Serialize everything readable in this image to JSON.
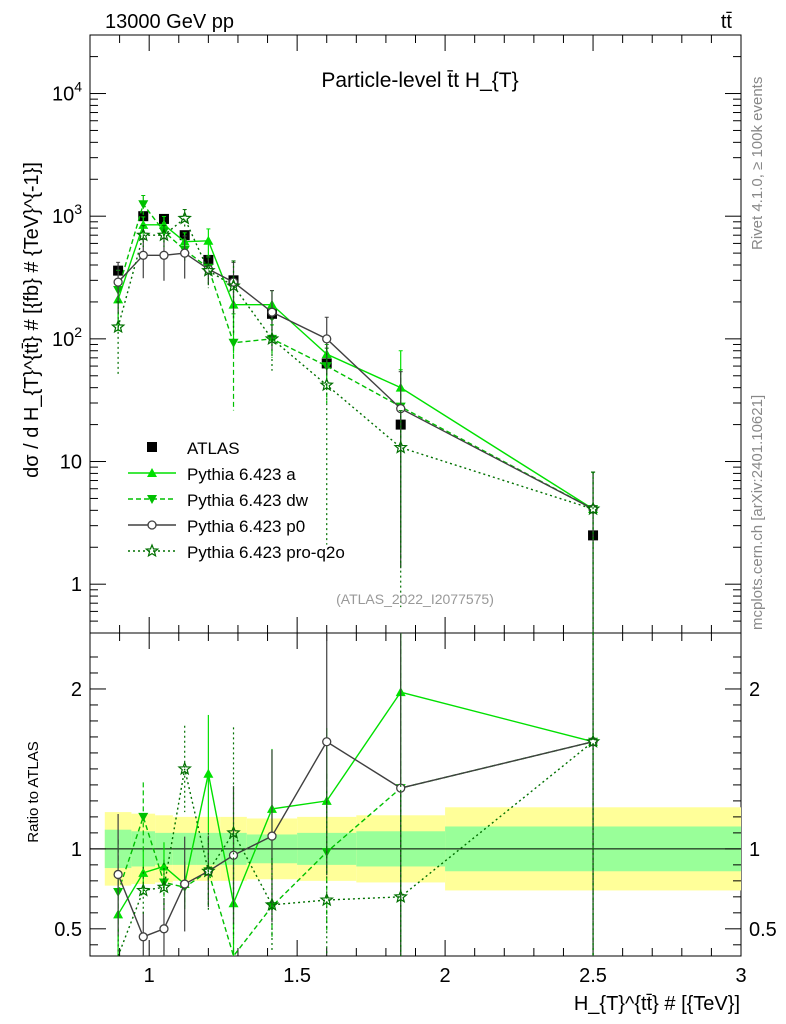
{
  "header": {
    "left": "13000 GeV pp",
    "right": "tt̄",
    "side_rivet": "Rivet 4.1.0, ≥ 100k events",
    "side_mcplots": "mcplots.cern.ch [arXiv:2401.10621]"
  },
  "chart_data": {
    "type": "line",
    "title": "Particle-level t̄t  H_{T}",
    "watermark": "(ATLAS_2022_I2077575)",
    "xlabel": "H_{T}^{tt̄} # [{TeV}]",
    "ylabel": "dσ / d H_{T}^{tt̄} # [{fb} # {TeV}^{-1}]",
    "ratio_ylabel": "Ratio to ATLAS",
    "xlim": [
      0.8,
      3.0
    ],
    "ylim": [
      0.4,
      30000
    ],
    "ratio_ylim": [
      0.33,
      2.35
    ],
    "x_ticks": [
      "1",
      "1.5",
      "2",
      "2.5",
      "3"
    ],
    "y_ticks": [
      "1",
      "10",
      "10^2",
      "10^3",
      "10^4"
    ],
    "ratio_ticks": [
      "0.5",
      "1",
      "2"
    ],
    "bins": [
      0.85,
      0.94,
      1.02,
      1.08,
      1.16,
      1.24,
      1.33,
      1.5,
      1.7,
      2.0,
      3.0
    ],
    "x": [
      0.895,
      0.98,
      1.05,
      1.12,
      1.2,
      1.285,
      1.415,
      1.6,
      1.85,
      2.5
    ],
    "series": [
      {
        "name": "ATLAS",
        "color": "#000000",
        "values": [
          360,
          1000,
          950,
          700,
          440,
          300,
          160,
          63,
          20,
          2.5
        ],
        "band_inner": [
          0.12,
          0.11,
          0.1,
          0.1,
          0.1,
          0.1,
          0.09,
          0.1,
          0.11,
          0.14
        ],
        "band_outer": [
          0.23,
          0.22,
          0.21,
          0.2,
          0.2,
          0.2,
          0.19,
          0.2,
          0.21,
          0.26
        ]
      },
      {
        "name": "Pythia 6.423 a",
        "color": "#00e000",
        "values": [
          210,
          850,
          850,
          620,
          630,
          190,
          190,
          75,
          40,
          4.1
        ],
        "errors": [
          0.45,
          0.16,
          0.17,
          0.18,
          0.25,
          0.6,
          0.3,
          0.35,
          1.0,
          1.0
        ],
        "ratio": [
          0.59,
          0.85,
          0.89,
          0.78,
          1.47,
          0.66,
          1.25,
          1.3,
          1.98,
          1.67
        ]
      },
      {
        "name": "Pythia 6.423 dw",
        "color": "#00c000",
        "values": [
          250,
          1250,
          750,
          530,
          380,
          93,
          100,
          60,
          28,
          4.1
        ],
        "errors": [
          0.45,
          0.18,
          0.18,
          0.18,
          0.25,
          0.72,
          0.3,
          0.5,
          1.0,
          1.0
        ],
        "ratio": [
          0.73,
          1.2,
          0.79,
          0.76,
          0.86,
          0.31,
          0.64,
          0.98,
          1.38,
          1.67
        ]
      },
      {
        "name": "Pythia 6.423 p0",
        "color": "#404040",
        "values": [
          290,
          480,
          480,
          500,
          370,
          290,
          165,
          100,
          27,
          4.1
        ],
        "errors": [
          0.45,
          0.35,
          0.38,
          0.38,
          0.26,
          0.45,
          0.5,
          0.5,
          1.0,
          1.0
        ],
        "ratio": [
          0.84,
          0.45,
          0.5,
          0.78,
          0.86,
          0.96,
          1.08,
          1.67,
          1.38,
          1.67
        ]
      },
      {
        "name": "Pythia 6.423 pro-q2o",
        "color": "#007000",
        "values": [
          125,
          700,
          700,
          960,
          360,
          270,
          100,
          42,
          13,
          4.1
        ],
        "errors": [
          0.6,
          0.2,
          0.2,
          0.18,
          0.28,
          0.6,
          0.45,
          1.0,
          1.0,
          1.0
        ],
        "ratio": [
          0.31,
          0.74,
          0.76,
          1.5,
          0.86,
          1.1,
          0.65,
          0.68,
          0.7,
          1.67
        ]
      }
    ]
  }
}
